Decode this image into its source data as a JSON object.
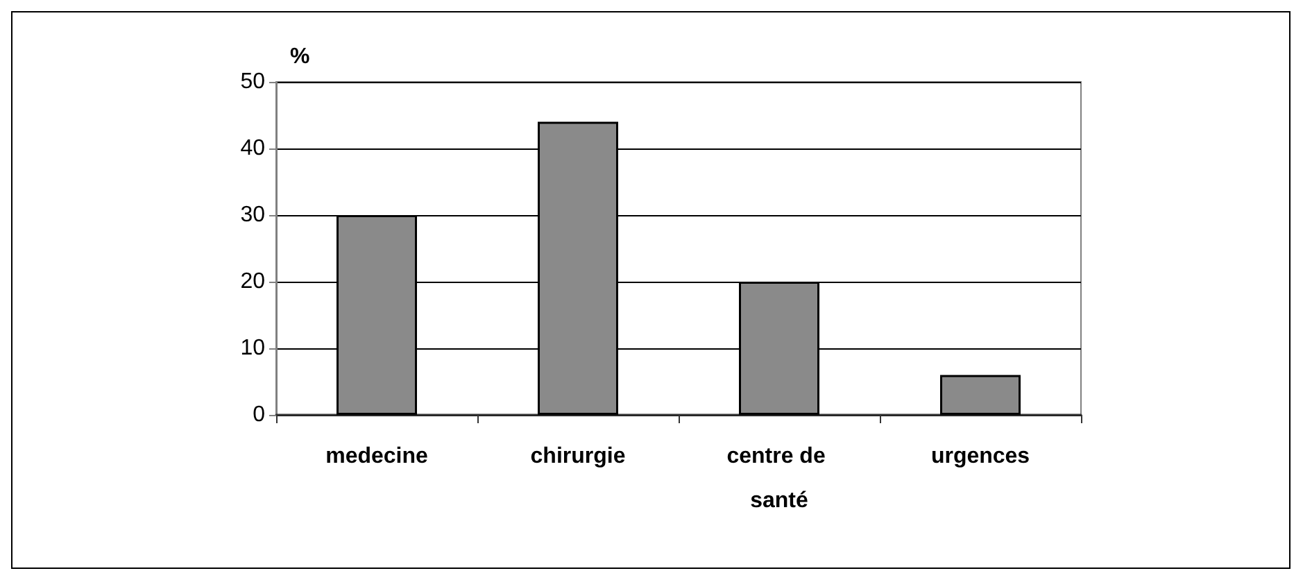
{
  "chart_data": {
    "type": "bar",
    "ylabel": "%",
    "categories": [
      "medecine",
      "chirurgie",
      "centre de santé",
      "urgences"
    ],
    "values": [
      30,
      44,
      20,
      6
    ],
    "color": "#8a8a8a",
    "ylim": [
      0,
      50
    ],
    "yticks": [
      0,
      10,
      20,
      30,
      40,
      50
    ],
    "grid": "y"
  }
}
